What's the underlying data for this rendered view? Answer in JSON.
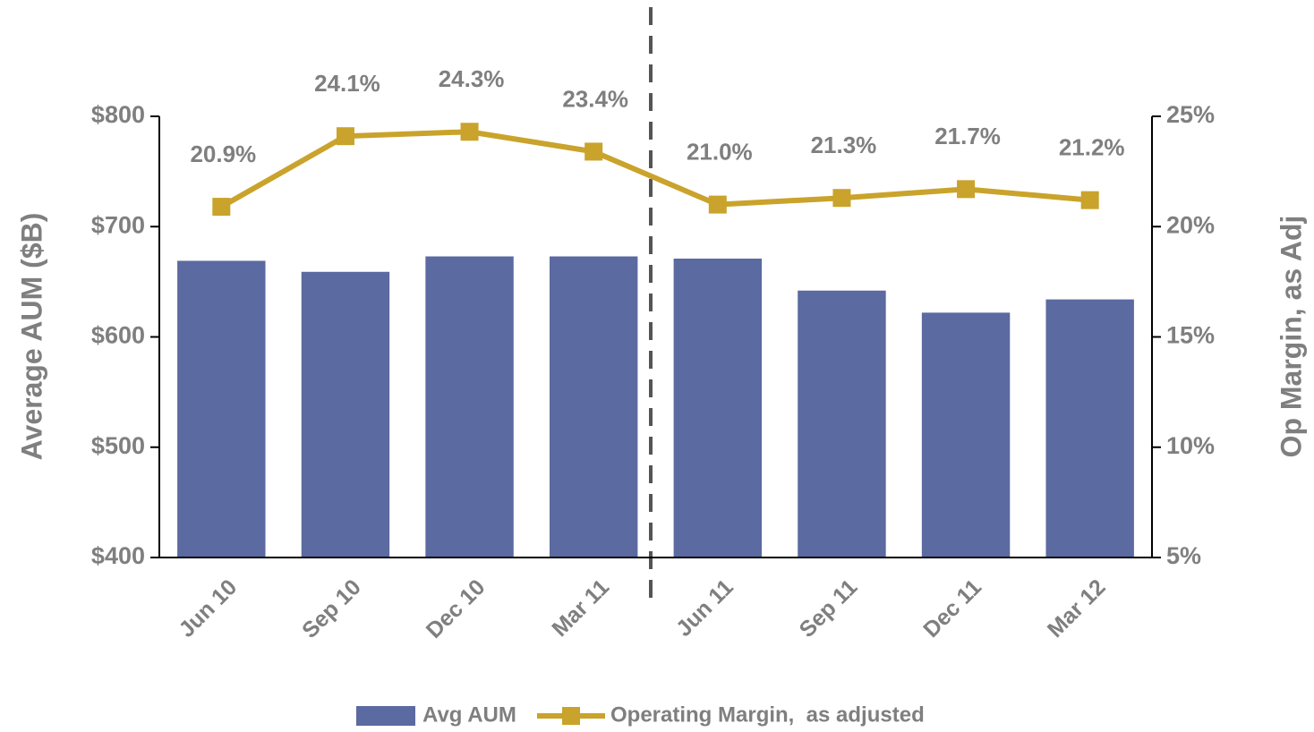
{
  "chart_data": {
    "type": "bar_line",
    "categories": [
      "Jun 10",
      "Sep 10",
      "Dec 10",
      "Mar 11",
      "Jun 11",
      "Sep 11",
      "Dec 11",
      "Mar 12"
    ],
    "series": [
      {
        "name": "Avg AUM",
        "color": "#5b6aa0",
        "type": "bar",
        "values": [
          669,
          659,
          673,
          673,
          671,
          642,
          622,
          634
        ]
      },
      {
        "name": "Operating Margin,  as adjusted",
        "color": "#c9a32b",
        "type": "line",
        "axis": "y2",
        "values": [
          20.9,
          24.1,
          24.3,
          23.4,
          21.0,
          21.3,
          21.7,
          21.2
        ],
        "value_labels": [
          "20.9%",
          "24.1%",
          "24.3%",
          "23.4%",
          "21.0%",
          "21.3%",
          "21.7%",
          "21.2%"
        ]
      }
    ],
    "ylabel": "Average AUM ($B)",
    "y2label": "Op Margin, as Adj",
    "ylim": [
      400,
      800
    ],
    "yticks": [
      {
        "value": 400,
        "label": "$400"
      },
      {
        "value": 500,
        "label": "$500"
      },
      {
        "value": 600,
        "label": "$600"
      },
      {
        "value": 700,
        "label": "$700"
      },
      {
        "value": 800,
        "label": "$800"
      }
    ],
    "y2lim": [
      5,
      25
    ],
    "y2ticks": [
      {
        "value": 5,
        "label": "5%"
      },
      {
        "value": 10,
        "label": "10%"
      },
      {
        "value": 15,
        "label": "15%"
      },
      {
        "value": 20,
        "label": "20%"
      },
      {
        "value": 25,
        "label": "25%"
      }
    ],
    "legend": "bottom"
  }
}
